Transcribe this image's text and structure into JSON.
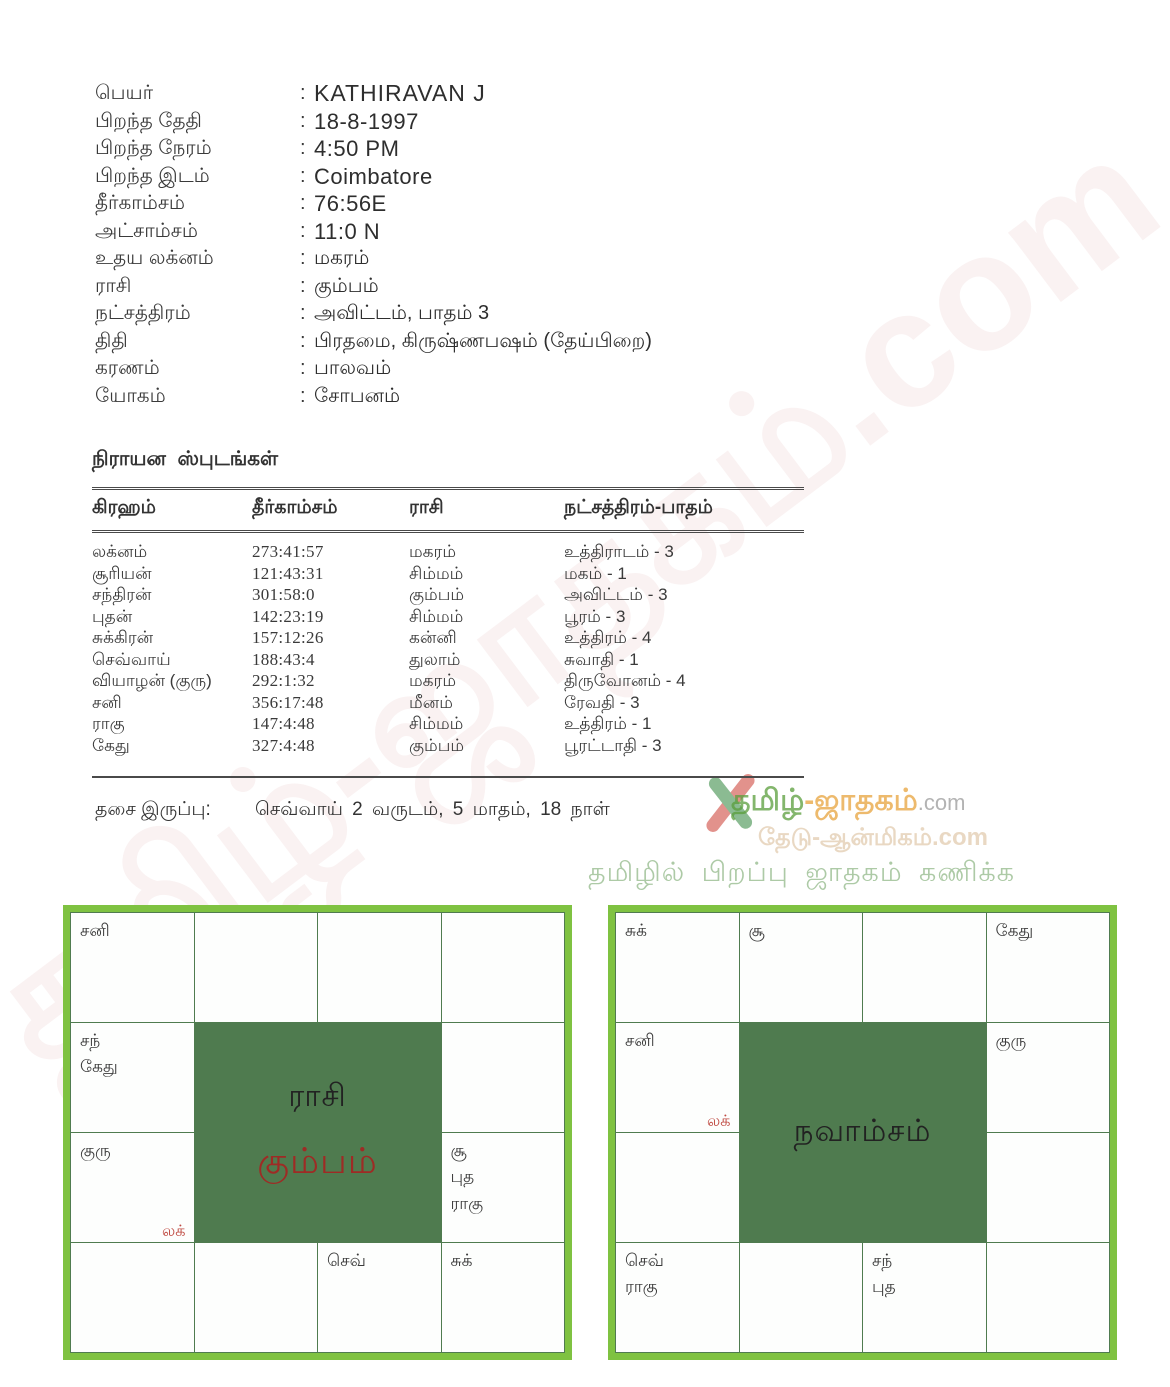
{
  "info": {
    "colon": ":",
    "rows": [
      {
        "label": "பெயர்",
        "value": "KATHIRAVAN J"
      },
      {
        "label": "பிறந்த தேதி",
        "value": "18-8-1997"
      },
      {
        "label": "பிறந்த நேரம்",
        "value": "4:50 PM"
      },
      {
        "label": "பிறந்த இடம்",
        "value": "Coimbatore"
      },
      {
        "label": "தீர்காம்சம்",
        "value": "76:56E"
      },
      {
        "label": "அட்சாம்சம்",
        "value": "11:0 N"
      },
      {
        "label": "உதய லக்னம்",
        "value": "மகரம்"
      },
      {
        "label": "ராசி",
        "value": "கும்பம்"
      },
      {
        "label": "நட்சத்திரம்",
        "value": "அவிட்டம், பாதம் 3"
      },
      {
        "label": "திதி",
        "value": "பிரதமை, கிருஷ்ணபஷம் (தேய்பிறை)"
      },
      {
        "label": "கரணம்",
        "value": "பாலவம்"
      },
      {
        "label": "யோகம்",
        "value": "சோபனம்"
      }
    ]
  },
  "table": {
    "title": "நிராயன ஸ்புடங்கள்",
    "headers": [
      "கிரஹம்",
      "தீர்காம்சம்",
      "ராசி",
      "நட்சத்திரம்-பாதம்"
    ],
    "rows": [
      [
        "லக்னம்",
        "273:41:57",
        "மகரம்",
        "உத்திராடம் - 3"
      ],
      [
        "சூரியன்",
        "121:43:31",
        "சிம்மம்",
        "மகம் - 1"
      ],
      [
        "சந்திரன்",
        "301:58:0",
        "கும்பம்",
        "அவிட்டம் - 3"
      ],
      [
        "புதன்",
        "142:23:19",
        "சிம்மம்",
        "பூரம் - 3"
      ],
      [
        "சுக்கிரன்",
        "157:12:26",
        "கன்னி",
        "உத்திரம் - 4"
      ],
      [
        "செவ்வாய்",
        "188:43:4",
        "துலாம்",
        "சுவாதி - 1"
      ],
      [
        "வியாழன் (குரு)",
        "292:1:32",
        "மகரம்",
        "திருவோனம் - 4"
      ],
      [
        "சனி",
        "356:17:48",
        "மீனம்",
        "ரேவதி - 3"
      ],
      [
        "ராகு",
        "147:4:48",
        "சிம்மம்",
        "உத்திரம் - 1"
      ],
      [
        "கேது",
        "327:4:48",
        "கும்பம்",
        "பூரட்டாதி - 3"
      ]
    ]
  },
  "dasa": {
    "label": "தசை இருப்பு:",
    "value": "செவ்வாய் 2 வருடம், 5 மாதம், 18 நாள்"
  },
  "watermark": {
    "diagonal": "தமிழ்-ஜாதகம்.com",
    "brand_first": "தமிழ்",
    "brand_dash": "-",
    "brand_second": "ஜாதகம்",
    "brand_tld": ".com",
    "line2": "தேடு-ஆன்மிகம்.com",
    "tagline": "தமிழில் பிறப்பு ஜாதகம் கணிக்க"
  },
  "charts": {
    "lagna_label": "லக்",
    "rasi": {
      "title": "ராசி",
      "subtitle": "கும்பம்",
      "cells": {
        "r1c1": [
          "சனி"
        ],
        "r2c1": [
          "சந்",
          "கேது"
        ],
        "r3c1": [
          "குரு"
        ],
        "r3c4": [
          "சூ",
          "புத",
          "ராகு"
        ],
        "r4c3": [
          "செவ்"
        ],
        "r4c4": [
          "சுக்"
        ]
      }
    },
    "navamsa": {
      "title": "நவாம்சம்",
      "cells": {
        "r1c1": [
          "சுக்"
        ],
        "r1c2": [
          "சூ"
        ],
        "r1c4": [
          "கேது"
        ],
        "r2c1": [
          "சனி"
        ],
        "r2c4": [
          "குரு"
        ],
        "r4c1": [
          "செவ்",
          "ராகு"
        ],
        "r4c3": [
          "சந்",
          "புத"
        ]
      }
    }
  },
  "colors": {
    "chart_border": "#7fc241",
    "chart_grid": "#4f7b4f",
    "lagna_red": "#bf4a42",
    "center_maroon": "#9e2b25",
    "brand_green": "#5a9e3c",
    "brand_orange": "#e8a33d",
    "tagline_green": "#9fc197",
    "text": "#2f2f2f"
  }
}
